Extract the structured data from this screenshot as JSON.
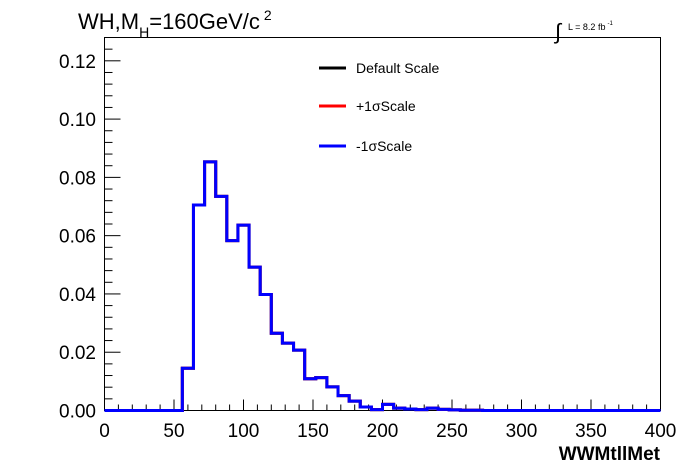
{
  "title": {
    "prefix": "WH,M",
    "subscript": "H",
    "suffix": "=160GeV/c",
    "superscript": "2"
  },
  "luminosity": {
    "integral": "∫",
    "text": "L = 8.2 fb",
    "superscript": "-1"
  },
  "legend": {
    "entries": [
      {
        "label": "Default Scale",
        "color": "#000000"
      },
      {
        "label": "+1σScale",
        "color": "#ff0000"
      },
      {
        "label": "-1σScale",
        "color": "#0000ff"
      }
    ]
  },
  "chart_data": {
    "type": "line",
    "drawstyle": "histogram-step",
    "xlabel": "WWMtllMet",
    "ylabel": "",
    "xlim": [
      0,
      400
    ],
    "ylim": [
      0,
      0.128
    ],
    "x_ticks": [
      0,
      50,
      100,
      150,
      200,
      250,
      300,
      350,
      400
    ],
    "x_tick_labels": [
      "0",
      "50",
      "100",
      "150",
      "200",
      "250",
      "300",
      "350",
      "400"
    ],
    "y_ticks": [
      0,
      0.02,
      0.04,
      0.06,
      0.08,
      0.1,
      0.12
    ],
    "y_tick_labels": [
      "0.00",
      "0.02",
      "0.04",
      "0.06",
      "0.08",
      "0.10",
      "0.12"
    ],
    "grid": false,
    "legend_position": "top-center",
    "bin_edges": [
      0,
      8,
      16,
      24,
      32,
      40,
      48,
      56,
      64,
      72,
      80,
      88,
      96,
      104,
      112,
      120,
      128,
      136,
      144,
      152,
      160,
      168,
      176,
      184,
      192,
      200,
      208,
      216,
      224,
      232,
      240,
      248,
      256,
      264,
      272,
      280,
      288,
      296,
      304,
      312,
      320,
      328,
      336,
      344,
      352,
      360,
      368,
      376,
      384,
      392,
      400
    ],
    "series": [
      {
        "name": "Default Scale",
        "color": "#000000",
        "values": [
          0,
          0,
          0,
          0,
          0,
          0,
          0,
          0.0145,
          0.0705,
          0.0853,
          0.0735,
          0.0583,
          0.0636,
          0.0492,
          0.0398,
          0.0265,
          0.0231,
          0.0207,
          0.0109,
          0.0113,
          0.0081,
          0.0051,
          0.0032,
          0.0012,
          0.0003,
          0.0021,
          0.0008,
          0.0005,
          0.0003,
          0.0008,
          0.0004,
          0.0002,
          0.0001,
          0.0001,
          0,
          0,
          0,
          0,
          0,
          0,
          0,
          0,
          0,
          0,
          0,
          0,
          0,
          0,
          0,
          0
        ]
      },
      {
        "name": "+1σScale",
        "color": "#ff0000",
        "values": [
          0,
          0,
          0,
          0,
          0,
          0,
          0,
          0.0145,
          0.0705,
          0.0853,
          0.0735,
          0.0583,
          0.0636,
          0.0492,
          0.0398,
          0.0265,
          0.0231,
          0.0207,
          0.0109,
          0.0113,
          0.0081,
          0.0051,
          0.0032,
          0.0012,
          0.0003,
          0.0021,
          0.0008,
          0.0005,
          0.0003,
          0.0008,
          0.0004,
          0.0002,
          0.0001,
          0.0001,
          0,
          0,
          0,
          0,
          0,
          0,
          0,
          0,
          0,
          0,
          0,
          0,
          0,
          0,
          0,
          0
        ]
      },
      {
        "name": "-1σScale",
        "color": "#0000ff",
        "values": [
          0,
          0,
          0,
          0,
          0,
          0,
          0,
          0.0145,
          0.0705,
          0.0853,
          0.0735,
          0.0583,
          0.0636,
          0.0492,
          0.0398,
          0.0265,
          0.0231,
          0.0207,
          0.0109,
          0.0113,
          0.0081,
          0.0051,
          0.0032,
          0.0012,
          0.0003,
          0.0021,
          0.0008,
          0.0005,
          0.0003,
          0.0008,
          0.0004,
          0.0002,
          0.0001,
          0.0001,
          0,
          0,
          0,
          0,
          0,
          0,
          0,
          0,
          0,
          0,
          0,
          0,
          0,
          0,
          0,
          0
        ]
      }
    ]
  }
}
